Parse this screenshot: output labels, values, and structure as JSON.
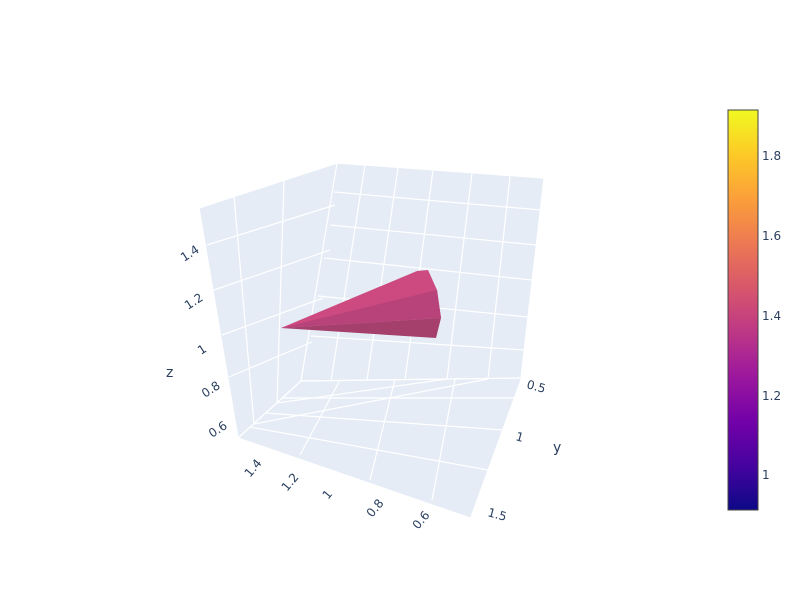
{
  "chart_data": {
    "type": "surface3d",
    "scene": {
      "x_axis": {
        "title": "",
        "tick_labels": [
          "1.4",
          "1.2",
          "1",
          "0.8",
          "0.6"
        ]
      },
      "y_axis": {
        "title": "y",
        "tick_labels": [
          "0.5",
          "1",
          "1.5"
        ]
      },
      "z_axis": {
        "title": "z",
        "tick_labels": [
          "1.4",
          "1.2",
          "1",
          "0.8",
          "0.6"
        ]
      },
      "background_color": "#e5ecf6",
      "grid_color": "#ffffff"
    },
    "surface": {
      "description_color": "#c8467c",
      "shape": "cone",
      "tip": {
        "x": 1.3,
        "y": 0.7,
        "z": 1.0
      },
      "base_center": {
        "x": 0.9,
        "y": 0.75,
        "z": 1.05
      },
      "color_value_approx": 1.45
    },
    "colorbar": {
      "colorscale": [
        "#0d0887",
        "#46039f",
        "#7201a8",
        "#9c179e",
        "#bd3786",
        "#d8576b",
        "#ed7953",
        "#fb9f3a",
        "#fdca26",
        "#f0f921"
      ],
      "range": [
        0.9,
        1.92
      ],
      "tick_labels": [
        "1",
        "1.2",
        "1.4",
        "1.6",
        "1.8"
      ]
    }
  }
}
